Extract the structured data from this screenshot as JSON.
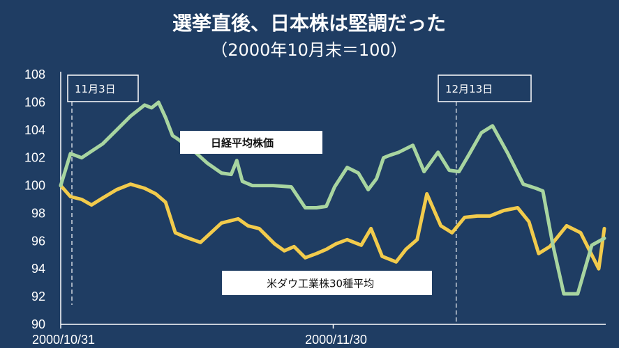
{
  "chart_data": {
    "type": "line",
    "title": "選挙直後、日本株は堅調だった",
    "subtitle": "（2000年10月末＝100）",
    "ylim": [
      90,
      108
    ],
    "yticks": [
      90,
      92,
      94,
      96,
      98,
      100,
      102,
      104,
      106,
      108
    ],
    "xlim": [
      0,
      39
    ],
    "xtick_labels": [
      {
        "label": "2000/10/31",
        "x": 0
      },
      {
        "label": "2000/11/30",
        "x": 19.5
      }
    ],
    "grid": false,
    "annotations": [
      {
        "label": "11月3日",
        "x": 0.8
      },
      {
        "label": "12月13日",
        "x": 28.3
      }
    ],
    "series": [
      {
        "name": "日経平均株価",
        "color": "#a8d5a0",
        "x": [
          0,
          0.7,
          1.5,
          3,
          4,
          5,
          6,
          6.5,
          7,
          7.5,
          8,
          8.3,
          9.4,
          10.5,
          11.5,
          12.2,
          12.6,
          13,
          13.7,
          15.2,
          16.5,
          17.5,
          18.3,
          19,
          19.6,
          20.5,
          21.3,
          22,
          22.6,
          23.1,
          23.6,
          24.2,
          25.2,
          26,
          27,
          27.8,
          28.5,
          29.2,
          30.1,
          30.9,
          32,
          33.1,
          34,
          34.5,
          35.2,
          36,
          37,
          38,
          38.9
        ],
        "values": [
          100,
          102.3,
          102,
          103,
          104,
          105,
          105.8,
          105.6,
          106,
          104.9,
          103.6,
          103.4,
          102.6,
          101.6,
          100.9,
          100.8,
          101.8,
          100.3,
          100,
          100,
          99.9,
          98.4,
          98.4,
          98.5,
          99.9,
          101.3,
          100.9,
          99.7,
          100.5,
          102,
          102.2,
          102.4,
          102.9,
          101,
          102.4,
          101.1,
          101,
          102.2,
          103.8,
          104.3,
          102.3,
          100.1,
          99.8,
          99.6,
          95.8,
          92.2,
          92.2,
          95.7,
          96.2
        ]
      },
      {
        "name": "米ダウ工業株30種平均",
        "color": "#f2cb4c",
        "x": [
          0,
          0.7,
          1.5,
          2.2,
          3,
          4,
          5,
          6,
          6.8,
          7.5,
          8.2,
          8.9,
          10,
          11.5,
          12.7,
          13.4,
          14.2,
          15.3,
          16,
          16.7,
          17.5,
          18.3,
          19,
          19.7,
          20.5,
          21.5,
          22.2,
          23,
          24,
          24.7,
          25.5,
          26.2,
          27.2,
          28,
          28.9,
          29.8,
          30.7,
          31.7,
          32.7,
          33.5,
          34.2,
          35,
          36.2,
          37.2,
          38.5,
          38.9
        ],
        "values": [
          100,
          99.2,
          99,
          98.6,
          99.1,
          99.7,
          100.1,
          99.8,
          99.4,
          98.8,
          96.6,
          96.3,
          95.9,
          97.3,
          97.6,
          97.1,
          96.9,
          95.8,
          95.3,
          95.6,
          94.8,
          95.1,
          95.4,
          95.8,
          96.1,
          95.7,
          96.9,
          94.9,
          94.5,
          95.4,
          96.1,
          99.4,
          97.1,
          96.6,
          97.7,
          97.8,
          97.8,
          98.2,
          98.4,
          97.4,
          95.1,
          95.6,
          97.1,
          96.6,
          94,
          96.9
        ]
      }
    ]
  }
}
